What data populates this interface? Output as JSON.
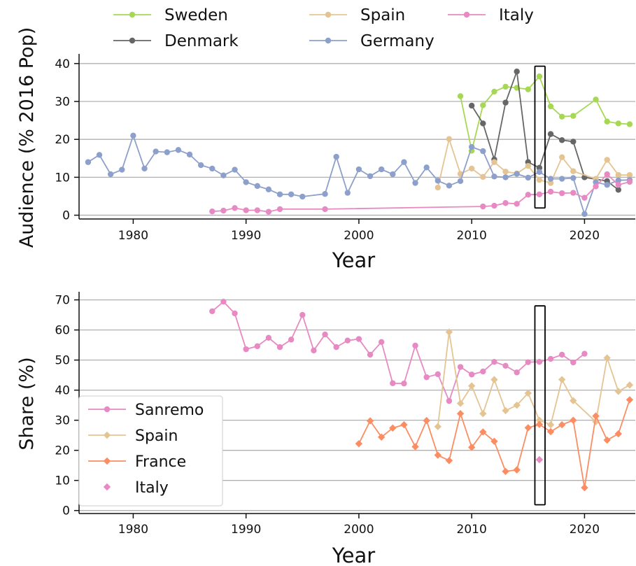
{
  "chart_data": [
    {
      "type": "line",
      "xlabel": "Year",
      "ylabel": "Audience (% 2016 Pop)",
      "xlim": [
        1975.2,
        2024.5
      ],
      "ylim": [
        -1,
        42
      ],
      "xticks": [
        1980,
        1990,
        2000,
        2010,
        2020
      ],
      "yticks": [
        0,
        10,
        20,
        30,
        40
      ],
      "grid": "horizontal",
      "legend": "top, 3 columns",
      "highlight": {
        "x": [
          2015.6,
          2016.5
        ],
        "y": [
          1.9,
          39.3
        ]
      },
      "series": [
        {
          "name": "Sweden",
          "color": "#a6d854",
          "marker": "circle",
          "x": [
            2009,
            2010,
            2011,
            2012,
            2013,
            2014,
            2015,
            2016,
            2017,
            2018,
            2019,
            2021,
            2022,
            2023,
            2024
          ],
          "y": [
            31.4,
            17,
            29,
            32.6,
            33.9,
            33.6,
            33.2,
            36.6,
            28.7,
            26,
            26.2,
            30.5,
            24.7,
            24.2,
            24
          ]
        },
        {
          "name": "Denmark",
          "color": "#666666",
          "marker": "circle",
          "x": [
            2010,
            2011,
            2012,
            2013,
            2014,
            2015,
            2016,
            2017,
            2018,
            2019,
            2020,
            2022,
            2023
          ],
          "y": [
            28.9,
            24.2,
            14.7,
            29.7,
            37.9,
            14,
            12.5,
            21.4,
            19.8,
            19.4,
            10,
            9,
            6.7
          ]
        },
        {
          "name": "Spain",
          "color": "#e5c494",
          "marker": "circle",
          "x": [
            2007,
            2008,
            2009,
            2010,
            2011,
            2012,
            2013,
            2014,
            2015,
            2016,
            2017,
            2018,
            2019,
            2021,
            2022,
            2023,
            2024
          ],
          "y": [
            7.3,
            20.1,
            10.9,
            12.3,
            10.1,
            14,
            11.5,
            11,
            13,
            9.3,
            8.5,
            15.3,
            11.6,
            9.6,
            14.6,
            10.6,
            10.6
          ]
        },
        {
          "name": "Germany",
          "color": "#8da0cb",
          "marker": "circle",
          "x": [
            1976,
            1977,
            1978,
            1979,
            1980,
            1981,
            1982,
            1983,
            1984,
            1985,
            1986,
            1987,
            1988,
            1989,
            1990,
            1991,
            1992,
            1993,
            1994,
            1995,
            1997,
            1998,
            1999,
            2000,
            2001,
            2002,
            2003,
            2004,
            2005,
            2006,
            2007,
            2008,
            2009,
            2010,
            2011,
            2012,
            2013,
            2014,
            2015,
            2016,
            2017,
            2018,
            2019,
            2020,
            2021,
            2022,
            2023,
            2024
          ],
          "y": [
            14,
            15.9,
            10.8,
            12,
            21,
            12.3,
            16.8,
            16.6,
            17.2,
            16,
            13.2,
            12.3,
            10.5,
            12,
            8.7,
            7.7,
            6.8,
            5.5,
            5.5,
            4.9,
            5.6,
            15.4,
            5.9,
            12.1,
            10.3,
            12.1,
            10.8,
            14,
            8.5,
            12.6,
            9.1,
            7.8,
            9,
            18,
            16.9,
            10.2,
            10,
            10.9,
            9.9,
            11.4,
            9.6,
            9.6,
            9.8,
            0.3,
            8.7,
            8,
            9.2,
            9.3
          ]
        },
        {
          "name": "Italy",
          "color": "#e78ac3",
          "marker": "circle",
          "x": [
            1987,
            1988,
            1989,
            1990,
            1991,
            1992,
            1993,
            1997,
            2011,
            2012,
            2013,
            2014,
            2015,
            2016,
            2017,
            2018,
            2019,
            2020,
            2021,
            2022,
            2023,
            2024
          ],
          "y": [
            1,
            1.2,
            1.9,
            1.3,
            1.3,
            0.9,
            1.6,
            1.6,
            2.3,
            2.5,
            3.2,
            3,
            5.4,
            5.5,
            6.2,
            5.8,
            5.9,
            4.6,
            7.6,
            10.8,
            8,
            8.8
          ]
        }
      ]
    },
    {
      "type": "line",
      "xlabel": "Year",
      "ylabel": "Share (%)",
      "xlim": [
        1975.2,
        2024.5
      ],
      "ylim": [
        -1,
        72
      ],
      "xticks": [
        1980,
        1990,
        2000,
        2010,
        2020
      ],
      "yticks": [
        0,
        10,
        20,
        30,
        40,
        50,
        60,
        70
      ],
      "grid": "horizontal",
      "legend": "bottom-left",
      "highlight": {
        "x": [
          2015.6,
          2016.5
        ],
        "y": [
          1.9,
          68
        ]
      },
      "series": [
        {
          "name": "Sanremo",
          "color": "#e78ac3",
          "marker": "circle",
          "x": [
            1987,
            1988,
            1989,
            1990,
            1991,
            1992,
            1993,
            1994,
            1995,
            1996,
            1997,
            1998,
            1999,
            2000,
            2001,
            2002,
            2003,
            2004,
            2005,
            2006,
            2007,
            2008,
            2009,
            2010,
            2011,
            2012,
            2013,
            2014,
            2015,
            2016,
            2017,
            2018,
            2019,
            2020
          ],
          "y": [
            66.2,
            69.4,
            65.5,
            53.6,
            54.6,
            57.4,
            54.3,
            56.8,
            65,
            53.2,
            58.5,
            54.3,
            56.5,
            57,
            51.8,
            56,
            42.3,
            42.2,
            54.8,
            44.3,
            45.3,
            36.4,
            47.7,
            45.2,
            46.2,
            49.4,
            48.1,
            45.9,
            49.3,
            49.4,
            50.4,
            51.8,
            49.2,
            52.1
          ]
        },
        {
          "name": "Spain",
          "color": "#e5c494",
          "marker": "diamond",
          "x": [
            2007,
            2008,
            2009,
            2010,
            2011,
            2012,
            2013,
            2014,
            2015,
            2016,
            2017,
            2018,
            2019,
            2021,
            2022,
            2023,
            2024
          ],
          "y": [
            27.9,
            59.3,
            35.6,
            41.4,
            32.2,
            43.5,
            33.2,
            35,
            39,
            30,
            28.5,
            43.5,
            36.5,
            29.5,
            50.7,
            39.6,
            41.7
          ]
        },
        {
          "name": "France",
          "color": "#fc8d62",
          "marker": "diamond",
          "x": [
            2000,
            2001,
            2002,
            2003,
            2004,
            2005,
            2006,
            2007,
            2008,
            2009,
            2010,
            2011,
            2012,
            2013,
            2014,
            2015,
            2016,
            2017,
            2018,
            2019,
            2020,
            2021,
            2022,
            2023,
            2024
          ],
          "y": [
            22.2,
            29.8,
            24.4,
            27.4,
            28.5,
            21.2,
            29.9,
            18.4,
            16.6,
            32.2,
            21,
            26.1,
            23,
            13,
            13.5,
            27.5,
            28.6,
            26.2,
            28.5,
            30,
            7.6,
            31.4,
            23.4,
            25.5,
            36.8
          ]
        },
        {
          "name": "Italy",
          "color": "#e78ac3",
          "marker": "diamond",
          "line": false,
          "x": [
            2016
          ],
          "y": [
            16.9
          ]
        }
      ]
    }
  ]
}
